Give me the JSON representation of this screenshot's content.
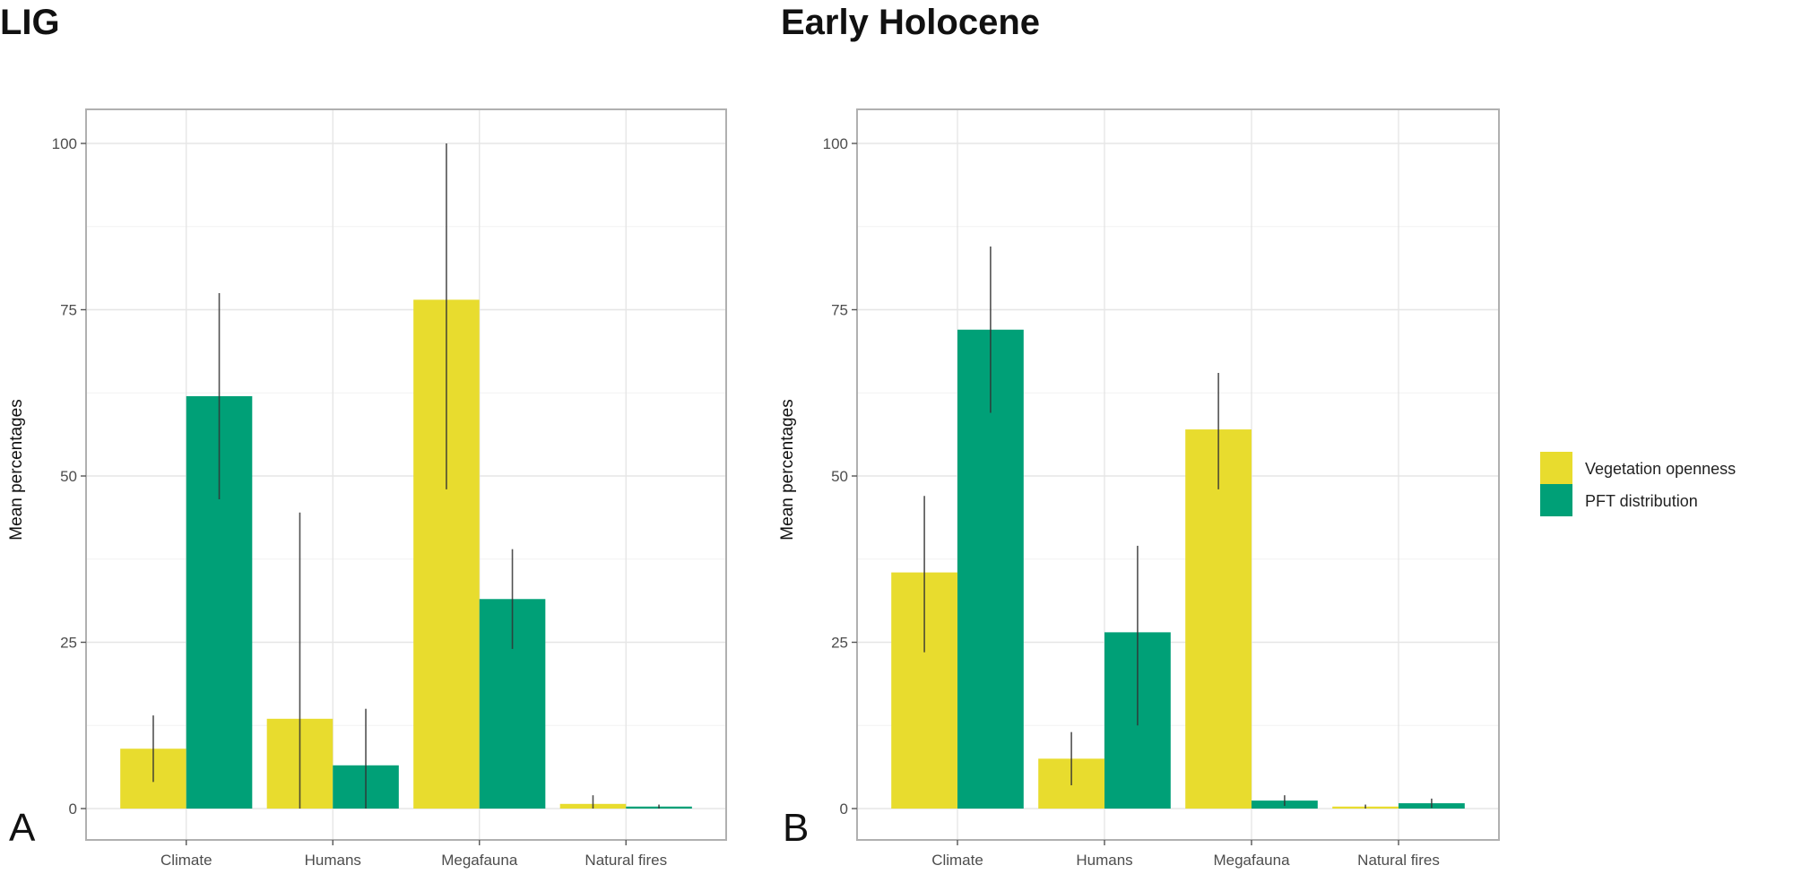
{
  "chart_data": [
    {
      "type": "bar",
      "title": "LIG",
      "panel_label": "A",
      "ylabel": "Mean percentages",
      "xlabel": "",
      "categories": [
        "Climate",
        "Humans",
        "Megafauna",
        "Natural fires"
      ],
      "ylim": [
        0,
        100
      ],
      "yticks": [
        0,
        25,
        50,
        75,
        100
      ],
      "grid": true,
      "series": [
        {
          "name": "Vegetation openness",
          "color": "#e8dc2e",
          "values": [
            9,
            13.5,
            76.5,
            0.7
          ],
          "error_low": [
            4,
            0,
            48,
            0
          ],
          "error_high": [
            14,
            44.5,
            100,
            2
          ]
        },
        {
          "name": "PFT distribution",
          "color": "#00a077",
          "values": [
            62,
            6.5,
            31.5,
            0.3
          ],
          "error_low": [
            46.5,
            0,
            24,
            0
          ],
          "error_high": [
            77.5,
            15,
            39,
            0.6
          ]
        }
      ]
    },
    {
      "type": "bar",
      "title": "Early Holocene",
      "panel_label": "B",
      "ylabel": "Mean percentages",
      "xlabel": "",
      "categories": [
        "Climate",
        "Humans",
        "Megafauna",
        "Natural fires"
      ],
      "ylim": [
        0,
        100
      ],
      "yticks": [
        0,
        25,
        50,
        75,
        100
      ],
      "grid": true,
      "series": [
        {
          "name": "Vegetation openness",
          "color": "#e8dc2e",
          "values": [
            35.5,
            7.5,
            57,
            0.3
          ],
          "error_low": [
            23.5,
            3.5,
            48,
            0
          ],
          "error_high": [
            47,
            11.5,
            65.5,
            0.6
          ]
        },
        {
          "name": "PFT distribution",
          "color": "#00a077",
          "values": [
            72,
            26.5,
            1.2,
            0.8
          ],
          "error_low": [
            59.5,
            12.5,
            0.4,
            0.1
          ],
          "error_high": [
            84.5,
            39.5,
            2,
            1.5
          ]
        }
      ]
    }
  ],
  "legend": {
    "position": "right",
    "items": [
      {
        "label": "Vegetation openness",
        "color": "#e8dc2e"
      },
      {
        "label": "PFT distribution",
        "color": "#00a077"
      }
    ]
  }
}
